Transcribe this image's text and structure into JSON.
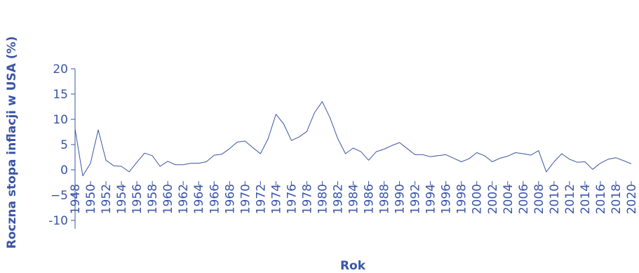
{
  "chart_data": {
    "type": "line",
    "title": "",
    "xlabel": "Rok",
    "ylabel": "Roczna stopa inflacji w USA (%)",
    "xlim": [
      1948,
      2020
    ],
    "ylim": [
      -10,
      20
    ],
    "x_ticks": [
      1948,
      1950,
      1952,
      1954,
      1956,
      1958,
      1960,
      1962,
      1964,
      1966,
      1968,
      1970,
      1972,
      1974,
      1976,
      1978,
      1980,
      1982,
      1984,
      1986,
      1988,
      1990,
      1992,
      1994,
      1996,
      1998,
      2000,
      2002,
      2004,
      2006,
      2008,
      2010,
      2012,
      2014,
      2016,
      2018,
      2020
    ],
    "y_ticks": [
      -10,
      -5,
      0,
      5,
      10,
      15,
      20
    ],
    "y_tick_labels": [
      "-10",
      "−5",
      "0",
      "5",
      "10",
      "15",
      "20"
    ],
    "grid": false,
    "legend": "none",
    "color": "#3a55a4",
    "x": [
      1948,
      1949,
      1950,
      1951,
      1952,
      1953,
      1954,
      1955,
      1956,
      1957,
      1958,
      1959,
      1960,
      1961,
      1962,
      1963,
      1964,
      1965,
      1966,
      1967,
      1968,
      1969,
      1970,
      1971,
      1972,
      1973,
      1974,
      1975,
      1976,
      1977,
      1978,
      1979,
      1980,
      1981,
      1982,
      1983,
      1984,
      1985,
      1986,
      1987,
      1988,
      1989,
      1990,
      1991,
      1992,
      1993,
      1994,
      1995,
      1996,
      1997,
      1998,
      1999,
      2000,
      2001,
      2002,
      2003,
      2004,
      2005,
      2006,
      2007,
      2008,
      2009,
      2010,
      2011,
      2012,
      2013,
      2014,
      2015,
      2016,
      2017,
      2018,
      2019,
      2020
    ],
    "values": [
      8.1,
      -1.2,
      1.3,
      7.9,
      1.9,
      0.8,
      0.7,
      -0.4,
      1.5,
      3.3,
      2.8,
      0.7,
      1.7,
      1.0,
      1.0,
      1.3,
      1.3,
      1.6,
      2.9,
      3.1,
      4.2,
      5.5,
      5.7,
      4.4,
      3.2,
      6.2,
      11.0,
      9.1,
      5.8,
      6.5,
      7.6,
      11.3,
      13.5,
      10.3,
      6.2,
      3.2,
      4.3,
      3.6,
      1.9,
      3.6,
      4.1,
      4.8,
      5.4,
      4.2,
      3.0,
      3.0,
      2.6,
      2.8,
      3.0,
      2.3,
      1.6,
      2.2,
      3.4,
      2.8,
      1.6,
      2.3,
      2.7,
      3.4,
      3.2,
      2.9,
      3.8,
      -0.4,
      1.6,
      3.2,
      2.1,
      1.5,
      1.6,
      0.1,
      1.3,
      2.1,
      2.4,
      1.8,
      1.2
    ]
  }
}
